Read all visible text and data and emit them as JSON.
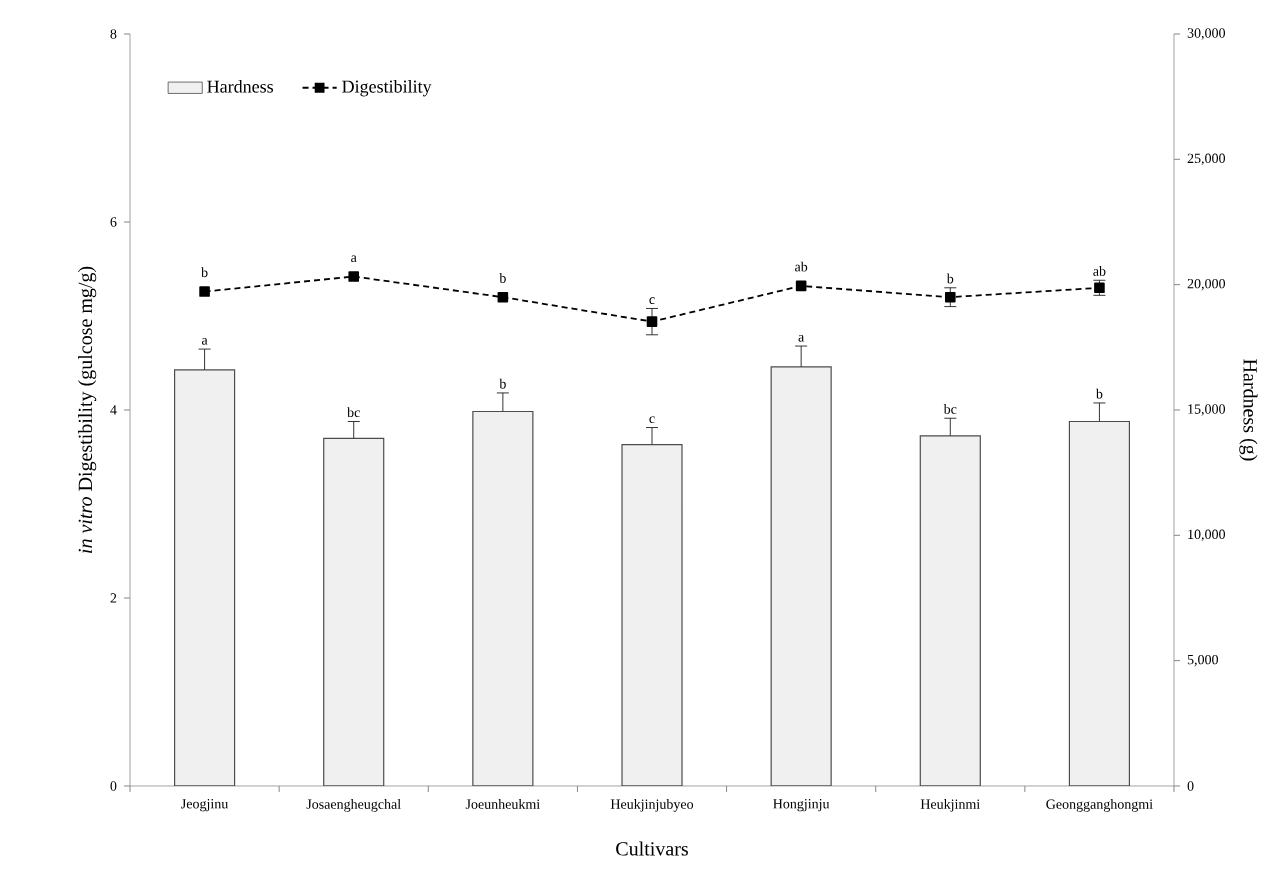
{
  "chart_data": {
    "type": "bar",
    "xlabel": "Cultivars",
    "ylabel": "*in vitro* Digestibility  (gulcose mg/g)",
    "y2label": "Hardness (g)",
    "categories": [
      "Jeogjinu",
      "Josaengheugchal",
      "Joeunheukmi",
      "Heukjinjubyeo",
      "Hongjinju",
      "Heukjinmi",
      "Geongganghongmi"
    ],
    "series": [
      {
        "name": "Hardness",
        "axis": "y2",
        "color": "#f0f0f0",
        "values": [
          16600,
          13870,
          14940,
          13620,
          16720,
          13970,
          14540
        ],
        "errors": [
          830,
          670,
          740,
          680,
          830,
          700,
          740
        ],
        "value_labels": [
          "a",
          "bc",
          "b",
          "c",
          "a",
          "bc",
          "b"
        ]
      },
      {
        "name": "Digestibility",
        "type": "line",
        "axis": "y",
        "color": "#000000",
        "marker": "square",
        "line_style": "dashed",
        "values": [
          5.26,
          5.42,
          5.2,
          4.94,
          5.32,
          5.2,
          5.3
        ],
        "errors": [
          null,
          null,
          null,
          0.14,
          null,
          0.1,
          0.08
        ],
        "value_labels": [
          "b",
          "a",
          "b",
          "c",
          "ab",
          "b",
          "ab"
        ]
      }
    ],
    "ylim": [
      0,
      8
    ],
    "yticks": [
      0,
      2,
      4,
      6,
      8
    ],
    "y2lim": [
      0,
      30000
    ],
    "y2ticks": [
      {
        "value": 0,
        "label": "0"
      },
      {
        "value": 5000,
        "label": "5,000"
      },
      {
        "value": 10000,
        "label": "10,000"
      },
      {
        "value": 15000,
        "label": "15,000"
      },
      {
        "value": 20000,
        "label": "20,000"
      },
      {
        "value": 25000,
        "label": "25,000"
      },
      {
        "value": 30000,
        "label": "30,000"
      }
    ],
    "grid": false,
    "legend": "top left"
  }
}
